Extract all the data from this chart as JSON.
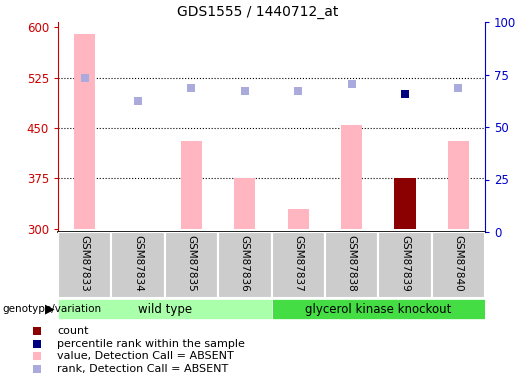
{
  "title": "GDS1555 / 1440712_at",
  "samples": [
    "GSM87833",
    "GSM87834",
    "GSM87835",
    "GSM87836",
    "GSM87837",
    "GSM87838",
    "GSM87839",
    "GSM87840"
  ],
  "bar_values": [
    590,
    300,
    430,
    375,
    330,
    455,
    375,
    430
  ],
  "bar_bottom": 300,
  "bar_color_normal": "#FFB6C1",
  "bar_color_count": "#8B0000",
  "count_bar_index": 6,
  "rank_squares": [
    525,
    490,
    510,
    505,
    505,
    515,
    500,
    510
  ],
  "rank_square_color_absent": "#AAAADD",
  "rank_square_color_percentile": "#000080",
  "percentile_rank_index": 6,
  "ylim_left": [
    295,
    608
  ],
  "ylim_right": [
    0,
    100
  ],
  "yticks_left": [
    300,
    375,
    450,
    525,
    600
  ],
  "yticks_right": [
    0,
    25,
    50,
    75,
    100
  ],
  "ytick_labels_right": [
    "0",
    "25",
    "50",
    "75",
    "100%"
  ],
  "dotted_lines": [
    375,
    450,
    525
  ],
  "wild_type_indices": [
    0,
    1,
    2,
    3
  ],
  "knockout_indices": [
    4,
    5,
    6,
    7
  ],
  "wild_type_label": "wild type",
  "knockout_label": "glycerol kinase knockout",
  "wild_type_color": "#AAFFAA",
  "knockout_color": "#44DD44",
  "genotype_label": "genotype/variation",
  "legend_items": [
    {
      "label": "count",
      "color": "#8B0000"
    },
    {
      "label": "percentile rank within the sample",
      "color": "#000080"
    },
    {
      "label": "value, Detection Call = ABSENT",
      "color": "#FFB6C1"
    },
    {
      "label": "rank, Detection Call = ABSENT",
      "color": "#AAAADD"
    }
  ],
  "tick_label_color_left": "#CC0000",
  "tick_label_color_right": "#0000CC",
  "sample_area_color": "#CCCCCC",
  "bar_width": 0.4
}
